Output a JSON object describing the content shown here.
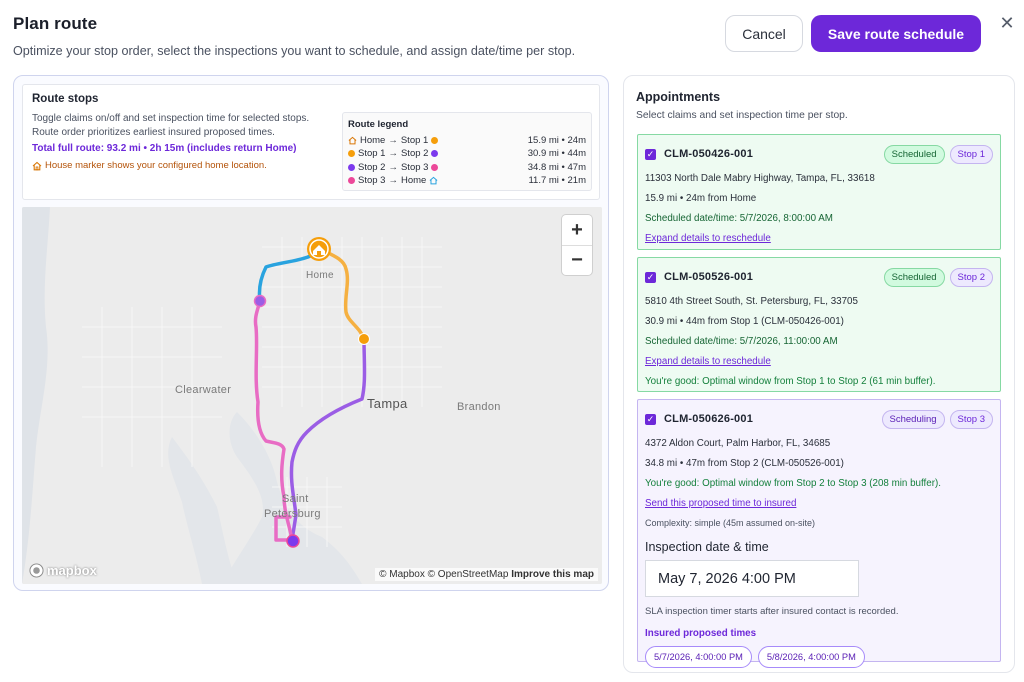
{
  "header": {
    "title": "Plan route",
    "subtitle": "Optimize your stop order, select the inspections you want to schedule, and assign date/time per stop.",
    "cancel_label": "Cancel",
    "save_label": "Save route schedule",
    "close_glyph": "✕"
  },
  "route_stops": {
    "title": "Route stops",
    "desc_line1": "Toggle claims on/off and set inspection time for selected stops.",
    "desc_line2": "Route order prioritizes earliest insured proposed times.",
    "total": "Total full route: 93.2 mi • 2h 15m (includes return Home)",
    "home_note": "House marker shows your configured home location."
  },
  "legend": {
    "title": "Route legend",
    "rows": [
      {
        "from": "Home",
        "to": "Stop 1",
        "stats": "15.9 mi • 24m"
      },
      {
        "from": "Stop 1",
        "to": "Stop 2",
        "stats": "30.9 mi • 44m"
      },
      {
        "from": "Stop 2",
        "to": "Stop 3",
        "stats": "34.8 mi • 47m"
      },
      {
        "from": "Stop 3",
        "to": "Home",
        "stats": "11.7 mi • 21m"
      }
    ],
    "arrow": "→"
  },
  "map": {
    "labels": {
      "home": "Home",
      "clearwater": "Clearwater",
      "tampa": "Tampa",
      "brandon": "Brandon",
      "saint": "Saint",
      "petersburg": "Petersburg"
    },
    "zoom_in": "+",
    "zoom_out": "−",
    "logo": "mapbox",
    "attr_mapbox": "© Mapbox",
    "attr_osm": "© OpenStreetMap",
    "attr_improve": "Improve this map"
  },
  "appointments": {
    "title": "Appointments",
    "subtitle": "Select claims and set inspection time per stop.",
    "cards": [
      {
        "id": "CLM-050426-001",
        "status": "Scheduled",
        "stop": "Stop 1",
        "address": "11303 North Dale Mabry Highway, Tampa, FL, 33618",
        "distance": "15.9 mi • 24m from Home",
        "scheduled": "Scheduled date/time: 5/7/2026, 8:00:00 AM",
        "link": "Expand details to reschedule"
      },
      {
        "id": "CLM-050526-001",
        "status": "Scheduled",
        "stop": "Stop 2",
        "address": "5810 4th Street South, St. Petersburg, FL, 33705",
        "distance": "30.9 mi • 44m from Stop 1 (CLM-050426-001)",
        "scheduled": "Scheduled date/time: 5/7/2026, 11:00:00 AM",
        "link": "Expand details to reschedule",
        "ok": "You're good: Optimal window from Stop 1 to Stop 2 (61 min buffer)."
      },
      {
        "id": "CLM-050626-001",
        "status": "Scheduling",
        "stop": "Stop 3",
        "address": "4372 Aldon Court, Palm Harbor, FL, 34685",
        "distance": "34.8 mi • 47m from Stop 2 (CLM-050526-001)",
        "ok": "You're good: Optimal window from Stop 2 to Stop 3 (208 min buffer).",
        "link": "Send this proposed time to insured",
        "complexity": "Complexity: simple (45m assumed on-site)",
        "inspection_label": "Inspection date & time",
        "inspection_value": "May 7, 2026 4:00 PM",
        "sla": "SLA inspection timer starts after insured contact is recorded.",
        "proposed_label": "Insured proposed times",
        "proposed_times": [
          "5/7/2026, 4:00:00 PM",
          "5/8/2026, 4:00:00 PM"
        ]
      }
    ]
  },
  "colors": {
    "accent": "#6d28d9",
    "home_orange": "#f59e0b",
    "stop_orange": "#f59e0b",
    "stop_purple": "#7c3aed",
    "stop_pink": "#ec4899",
    "route_blue": "#29a3df",
    "route_orange": "#f5b041",
    "route_purple": "#9b5de5",
    "route_pink": "#e86cc4"
  }
}
